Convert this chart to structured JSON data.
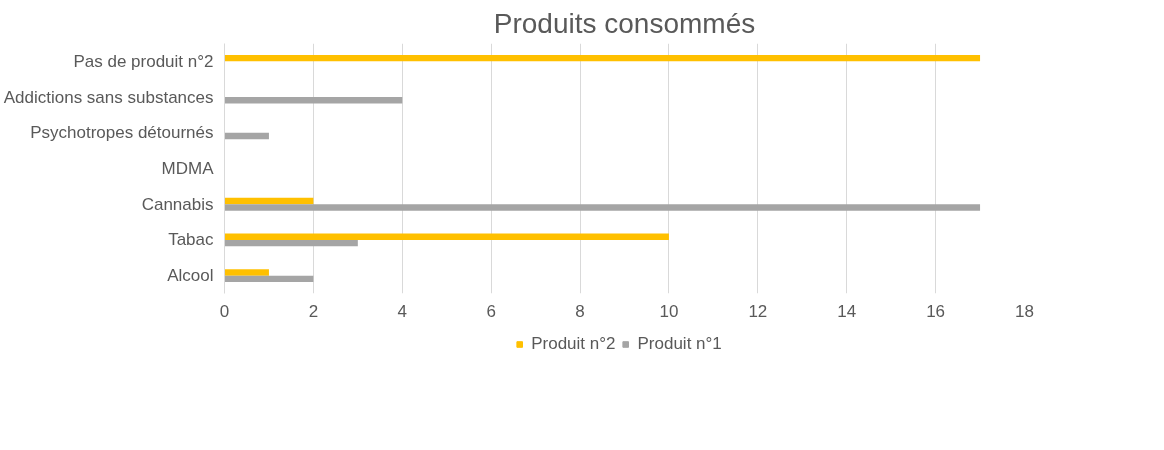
{
  "chart_data": {
    "type": "bar",
    "orientation": "horizontal",
    "title": "Produits consommés",
    "categories": [
      "Pas de produit n°2",
      "Addictions sans substances",
      "Psychotropes détournés",
      "MDMA",
      "Cannabis",
      "Tabac",
      "Alcool"
    ],
    "series": [
      {
        "name": "Produit n°2",
        "color": "#ffc000",
        "values": [
          17,
          0,
          0,
          0,
          2,
          10,
          1
        ]
      },
      {
        "name": "Produit n°1",
        "color": "#a5a5a5",
        "values": [
          0,
          4,
          1,
          0,
          17,
          3,
          2
        ]
      }
    ],
    "xlim": [
      0,
      18
    ],
    "xticks": [
      0,
      2,
      4,
      6,
      8,
      10,
      12,
      14,
      16,
      18
    ],
    "grid": "x",
    "legend": "bottom"
  }
}
